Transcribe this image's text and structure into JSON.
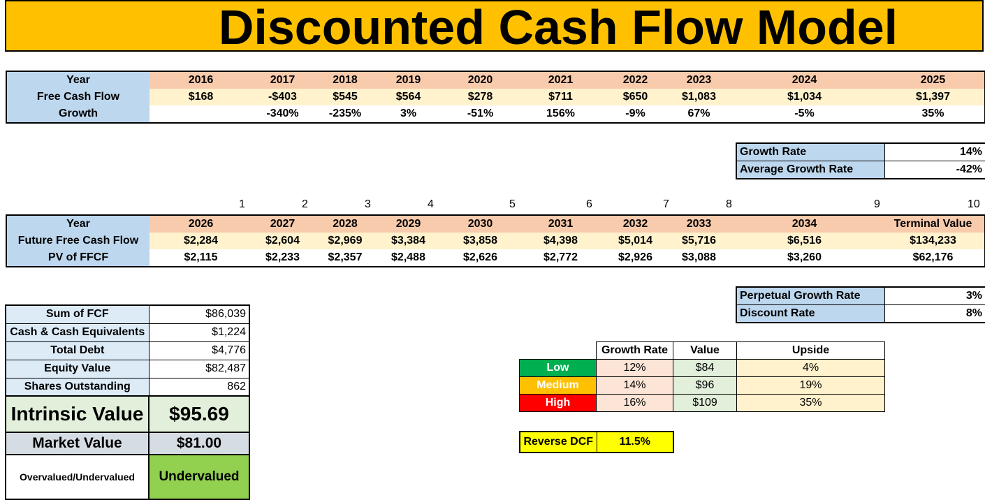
{
  "title": "Discounted Cash Flow Model",
  "historical": {
    "header_label": "Year",
    "years": [
      "2016",
      "2017",
      "2018",
      "2019",
      "2020",
      "2021",
      "2022",
      "2023",
      "2024",
      "2025"
    ],
    "fcf_label": "Free Cash Flow",
    "fcf": [
      "$168",
      "-$403",
      "$545",
      "$564",
      "$278",
      "$711",
      "$650",
      "$1,083",
      "$1,034",
      "$1,397"
    ],
    "growth_label": "Growth",
    "growth": [
      "",
      "-340%",
      "-235%",
      "3%",
      "-51%",
      "156%",
      "-9%",
      "67%",
      "-5%",
      "35%"
    ]
  },
  "growth_box": {
    "growth_rate_label": "Growth Rate",
    "growth_rate": "14%",
    "avg_growth_label": "Average Growth Rate",
    "avg_growth": "-42%"
  },
  "projection": {
    "indices": [
      "1",
      "2",
      "3",
      "4",
      "5",
      "6",
      "7",
      "8",
      "9",
      "10"
    ],
    "header_label": "Year",
    "years": [
      "2026",
      "2027",
      "2028",
      "2029",
      "2030",
      "2031",
      "2032",
      "2033",
      "2034",
      "Terminal Value"
    ],
    "ffcf_label": "Future Free Cash Flow",
    "ffcf": [
      "$2,284",
      "$2,604",
      "$2,969",
      "$3,384",
      "$3,858",
      "$4,398",
      "$5,014",
      "$5,716",
      "$6,516",
      "$134,233"
    ],
    "pv_label": "PV of FFCF",
    "pv": [
      "$2,115",
      "$2,233",
      "$2,357",
      "$2,488",
      "$2,626",
      "$2,772",
      "$2,926",
      "$3,088",
      "$3,260",
      "$62,176"
    ]
  },
  "rates_box": {
    "perp_label": "Perpetual Growth Rate",
    "perp": "3%",
    "discount_label": "Discount Rate",
    "discount": "8%"
  },
  "summary": {
    "rows": [
      {
        "label": "Sum of FCF",
        "value": "$86,039"
      },
      {
        "label": "Cash & Cash Equivalents",
        "value": "$1,224"
      },
      {
        "label": "Total Debt",
        "value": "$4,776"
      },
      {
        "label": "Equity Value",
        "value": "$82,487"
      },
      {
        "label": "Shares Outstanding",
        "value": "862"
      }
    ],
    "intrinsic_label": "Intrinsic Value",
    "intrinsic": "$95.69",
    "market_label": "Market Value",
    "market": "$81.00",
    "valuation_label": "Overvalued/Undervalued",
    "valuation": "Undervalued"
  },
  "sensitivity": {
    "headers": [
      "Growth Rate",
      "Value",
      "Upside"
    ],
    "rows": [
      {
        "scenario": "Low",
        "growth": "12%",
        "value": "$84",
        "upside": "4%",
        "color": "#00b050"
      },
      {
        "scenario": "Medium",
        "growth": "14%",
        "value": "$96",
        "upside": "19%",
        "color": "#ffc000"
      },
      {
        "scenario": "High",
        "growth": "16%",
        "value": "$109",
        "upside": "35%",
        "color": "#ff0000"
      }
    ]
  },
  "reverse_dcf": {
    "label": "Reverse DCF",
    "value": "11.5%"
  },
  "colors": {
    "banner": "#ffc000",
    "header_blue": "#bdd7ee",
    "header_peach": "#f8cbad",
    "row_cream": "#fff2cc",
    "intrinsic_green": "#e2efda",
    "undervalued_green": "#92d050",
    "reverse_yellow": "#ffff00"
  }
}
